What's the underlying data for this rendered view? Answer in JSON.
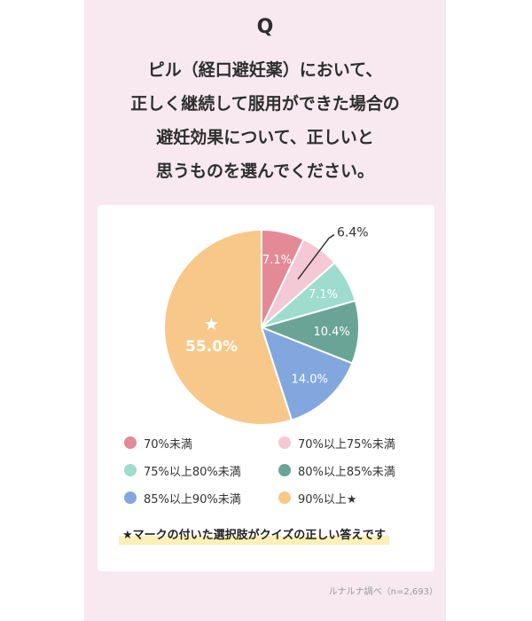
{
  "header": {
    "q_mark": "Q",
    "question_lines": [
      "ピル（経口避妊薬）において、",
      "正しく継続して服用ができた場合の",
      "避妊効果について、正しいと",
      "思うものを選んでください。"
    ]
  },
  "chart_data": {
    "type": "pie",
    "title": "",
    "slices": [
      {
        "label": "70%未満",
        "value": 7.1,
        "display": "7.1%",
        "color": "#e38a96"
      },
      {
        "label": "70%以上75%未満",
        "value": 6.4,
        "display": "6.4%",
        "color": "#f4c8d4"
      },
      {
        "label": "75%以上80%未満",
        "value": 7.1,
        "display": "7.1%",
        "color": "#9edccd"
      },
      {
        "label": "80%以上85%未満",
        "value": 10.4,
        "display": "10.4%",
        "color": "#6aa496"
      },
      {
        "label": "85%以上90%未満",
        "value": 14.0,
        "display": "14.0%",
        "color": "#82a7de"
      },
      {
        "label": "90%以上★",
        "value": 55.0,
        "display": "55.0%",
        "color": "#f7c88a",
        "star": "★"
      }
    ],
    "legend_placement": "bottom",
    "start": "top, clockwise"
  },
  "note": "★マークの付いた選択肢がクイズの正しい答えです",
  "source": "ルナルナ調べ（n=2,693）"
}
